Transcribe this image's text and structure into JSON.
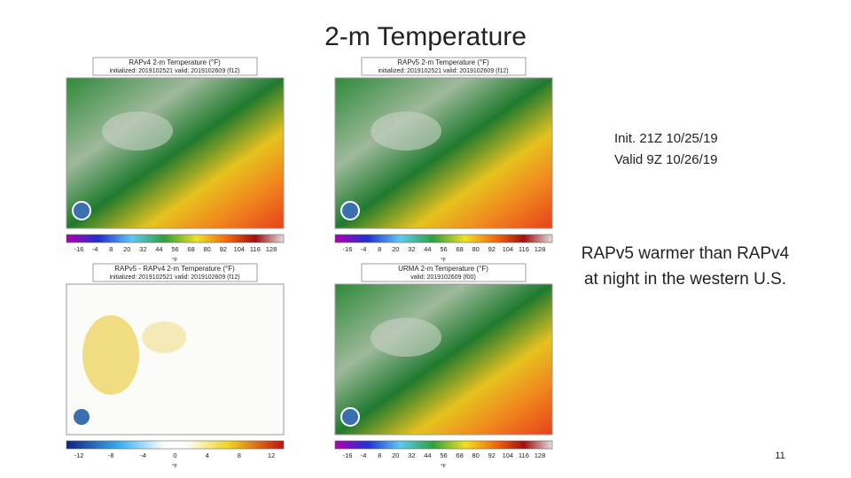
{
  "title": "2-m Temperature",
  "panels": [
    {
      "title": "RAPv4 2-m Temperature (°F)",
      "subtitle": "initialized: 2019102521 valid: 2019102609 (f12)",
      "kind": "temp",
      "colorbar_labels": [
        "-16",
        "-4",
        "8",
        "20",
        "32",
        "44",
        "56",
        "68",
        "80",
        "92",
        "104",
        "116",
        "128"
      ],
      "unit": "°F"
    },
    {
      "title": "RAPv5 2-m Temperature (°F)",
      "subtitle": "initialized: 2019102521 valid: 2019102609 (f12)",
      "kind": "temp",
      "colorbar_labels": [
        "-16",
        "-4",
        "8",
        "20",
        "32",
        "44",
        "56",
        "68",
        "80",
        "92",
        "104",
        "116",
        "128"
      ],
      "unit": "°F"
    },
    {
      "title": "RAPv5 - RAPv4 2-m Temperature (°F)",
      "subtitle": "initialized: 2019102521 valid: 2019102609 (f12)",
      "kind": "diff",
      "colorbar_labels": [
        "-12",
        "-8",
        "-4",
        "0",
        "4",
        "8",
        "12"
      ],
      "unit": "°F"
    },
    {
      "title": "URMA 2-m Temperature (°F)",
      "subtitle": "valid: 2019102609 (f00)",
      "kind": "temp",
      "colorbar_labels": [
        "-16",
        "-4",
        "8",
        "20",
        "32",
        "44",
        "56",
        "68",
        "80",
        "92",
        "104",
        "116",
        "128"
      ],
      "unit": "°F"
    }
  ],
  "notes": {
    "init": "Init. 21Z 10/25/19",
    "valid": "Valid 9Z 10/26/19",
    "finding_line1": "RAPv5 warmer than RAPv4",
    "finding_line2": "at night in the western U.S."
  },
  "page_number": "11"
}
